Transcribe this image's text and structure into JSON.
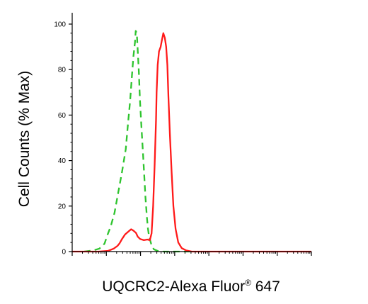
{
  "chart_data": {
    "type": "line",
    "title": "",
    "xlabel": "UQCRC2-Alexa Fluor",
    "xlabel_superscript": "®",
    "xlabel_suffix": " 647",
    "ylabel": "Cell Counts (% Max)",
    "x_scale": "log",
    "xlim": [
      1,
      10000000
    ],
    "ylim": [
      0,
      100
    ],
    "yticks": [
      0,
      20,
      40,
      60,
      80,
      100
    ],
    "grid": false,
    "legend": "none",
    "series": [
      {
        "color": "#2ec42e",
        "dash": "dashed",
        "points": [
          [
            2.24,
            0
          ],
          [
            4.12,
            0.5
          ],
          [
            6.28,
            1.3
          ],
          [
            8.85,
            3.5
          ],
          [
            10.9,
            7.5
          ],
          [
            13.4,
            11
          ],
          [
            17.3,
            17
          ],
          [
            22.3,
            26
          ],
          [
            28.7,
            35
          ],
          [
            37.0,
            45
          ],
          [
            42.8,
            56
          ],
          [
            49.5,
            66
          ],
          [
            56.4,
            78
          ],
          [
            62.3,
            86
          ],
          [
            68.8,
            92
          ],
          [
            72.4,
            97
          ],
          [
            77.6,
            96
          ],
          [
            83.2,
            88
          ],
          [
            89.3,
            79
          ],
          [
            96.0,
            67
          ],
          [
            106,
            55
          ],
          [
            117,
            44
          ],
          [
            129,
            33
          ],
          [
            139,
            24
          ],
          [
            154,
            15
          ],
          [
            165,
            10
          ],
          [
            178,
            6.5
          ],
          [
            209,
            3
          ],
          [
            246,
            1
          ],
          [
            303,
            0.4
          ],
          [
            394,
            0
          ],
          [
            1120,
            0
          ],
          [
            3450,
            0
          ]
        ]
      },
      {
        "color": "#ff1a1a",
        "dash": "solid",
        "points": [
          [
            1.0,
            0
          ],
          [
            3.19,
            0
          ],
          [
            6.0,
            0
          ],
          [
            11.3,
            0.3
          ],
          [
            16.5,
            1.3
          ],
          [
            21.2,
            2.5
          ],
          [
            24.1,
            3.5
          ],
          [
            28.7,
            5.5
          ],
          [
            35.2,
            7.5
          ],
          [
            45.8,
            9
          ],
          [
            53.2,
            9.8
          ],
          [
            62.3,
            9.2
          ],
          [
            73.9,
            8.2
          ],
          [
            83.2,
            6.5
          ],
          [
            97.6,
            5.5
          ],
          [
            125,
            5
          ],
          [
            158,
            5.3
          ],
          [
            187,
            5
          ],
          [
            211,
            8
          ],
          [
            234,
            20
          ],
          [
            259,
            38
          ],
          [
            284,
            58
          ],
          [
            296,
            70
          ],
          [
            317,
            82
          ],
          [
            347,
            88
          ],
          [
            388,
            90
          ],
          [
            423,
            93
          ],
          [
            466,
            96
          ],
          [
            514,
            94
          ],
          [
            564,
            90
          ],
          [
            609,
            82
          ],
          [
            657,
            68
          ],
          [
            721,
            52
          ],
          [
            812,
            35
          ],
          [
            915,
            20
          ],
          [
            1060,
            10
          ],
          [
            1270,
            4
          ],
          [
            1610,
            1.5
          ],
          [
            2170,
            0.5
          ],
          [
            3140,
            0
          ],
          [
            13300,
            0
          ],
          [
            244000,
            0
          ],
          [
            10000000,
            0
          ]
        ]
      }
    ]
  }
}
